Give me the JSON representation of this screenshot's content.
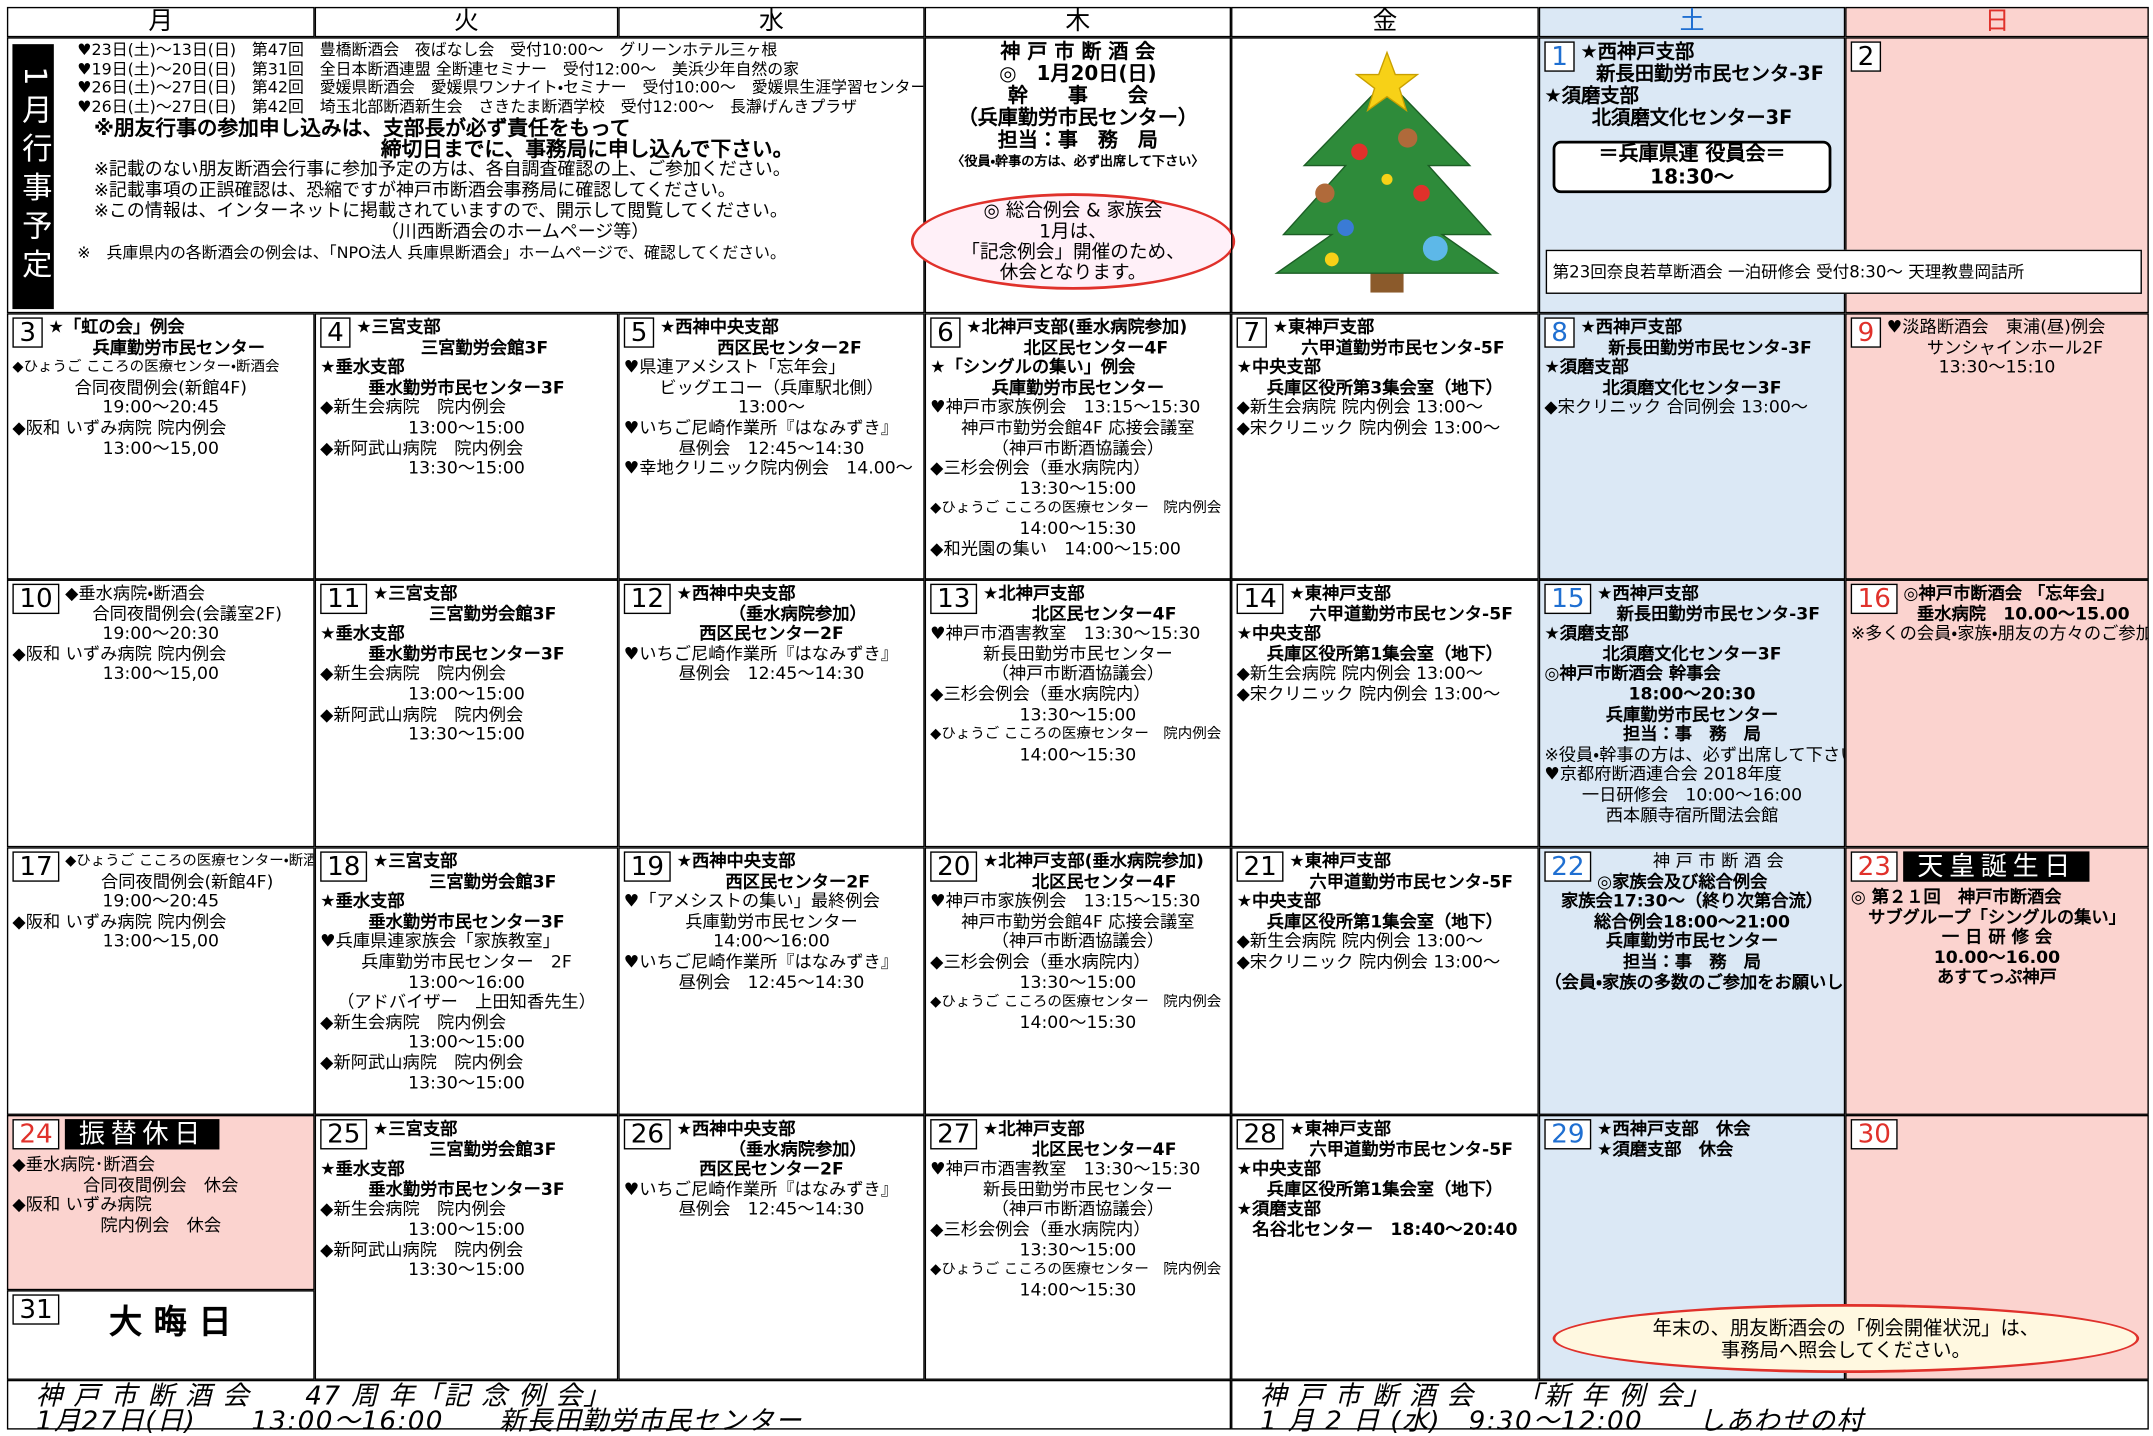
{
  "weekdays": [
    "月",
    "火",
    "水",
    "木",
    "金",
    "土",
    "日"
  ],
  "top": {
    "label": "1月行事予定",
    "events": [
      "♥23日(土)～13日(日)　第47回　豊橋断酒会　夜ばなし会　受付10:00～　グリーンホテル三ヶ根",
      "♥19日(土)～20日(日)　第31回　全日本断酒連盟 全断連セミナー　受付12:00～　美浜少年自然の家",
      "♥26日(土)～27日(日)　第42回　愛媛県断酒会　愛媛県ワンナイト・セミナー　受付10:00～　愛媛県生涯学習センター",
      "♥26日(土)～27日(日)　第42回　埼玉北部断酒新生会　さきたま断酒学校　受付12:00～　長瀞げんきプラザ"
    ],
    "notes": [
      "※朋友行事の参加申し込みは、支部長が必ず責任をもって",
      "締切日までに、事務局に申し込んで下さい。",
      "※記載のない朋友断酒会行事に参加予定の方は、各自調査確認の上、ご参加ください。",
      "※記載事項の正誤確認は、恐縮ですが神戸市断酒会事務局に確認してください。",
      "※この情報は、インターネットに掲載されていますので、開示して閲覧してください。",
      "（川西断酒会のホームページ等）",
      "※　兵庫県内の各断酒会の例会は、「NPO法人 兵庫県断酒会」ホームページで、確認してください。"
    ],
    "thursday": [
      "神 戸 市 断 酒 会",
      "◎　1月20日(日)",
      "幹　　事　　会",
      "（兵庫勤労市民センター）",
      "担当：事　務　局",
      "〈役員・幹事の方は、必ず出席して下さい〉"
    ],
    "bubble": [
      "◎ 総合例会 & 家族会",
      "1月は、",
      "「記念例会」開催のため、",
      "休会となります。"
    ],
    "saturday": {
      "day": "1",
      "lines": [
        "★西神戸支部",
        "新長田勤労市民センタ-3F",
        "★須磨支部",
        "北須磨文化センター3F"
      ],
      "box": [
        "＝兵庫県連 役員会＝",
        "18:30～"
      ]
    },
    "sunday": {
      "day": "2"
    },
    "nara": "第23回奈良若草断酒会 一泊研修会 受付8:30～ 天理教豊岡詰所"
  },
  "weeks": [
    [
      {
        "day": "3",
        "lines": [
          "★「虹の会」例会",
          "兵庫勤労市民センター",
          "◆ひょうご こころの医療センター・断酒会",
          "合同夜間例会(新館4F)",
          "19:00～20:45",
          "◆阪和 いずみ病院 院内例会",
          "13:00～15,00"
        ]
      },
      {
        "day": "4",
        "lines": [
          "★三宮支部",
          "三宮勤労会館3F",
          "★垂水支部",
          "垂水勤労市民センター3F",
          "◆新生会病院　院内例会",
          "13:00～15:00",
          "◆新阿武山病院　院内例会",
          "13:30～15:00"
        ]
      },
      {
        "day": "5",
        "lines": [
          "★西神中央支部",
          "西区民センター2F",
          "♥県連アメシスト「忘年会」",
          "ビッグエコー（兵庫駅北側）",
          "13:00～",
          "♥いちご尼崎作業所『はなみずき』",
          "昼例会　12:45～14:30",
          "♥幸地クリニック院内例会　14.00～"
        ]
      },
      {
        "day": "6",
        "lines": [
          "★北神戸支部(垂水病院参加)",
          "北区民センター4F",
          "★「シングルの集い」例会",
          "兵庫勤労市民センター",
          "♥神戸市家族例会　13:15～15:30",
          "神戸市勤労会館4F 応接会議室",
          "（神戸市断酒協議会）",
          "◆三杉会例会（垂水病院内）",
          "13:30～15:00",
          "◆ひょうご こころの医療センター　院内例会",
          "14:00～15:30",
          "◆和光園の集い　14:00～15:00"
        ]
      },
      {
        "day": "7",
        "lines": [
          "★東神戸支部",
          "六甲道勤労市民センタ-5F",
          "★中央支部",
          "兵庫区役所第3集会室（地下）",
          "◆新生会病院 院内例会 13:00～",
          "◆宋クリニック 院内例会 13:00～"
        ]
      },
      {
        "day": "8",
        "lines": [
          "★西神戸支部",
          "新長田勤労市民センタ-3F",
          "★須磨支部",
          "北須磨文化センター3F",
          "◆宋クリニック 合同例会 13:00～"
        ]
      },
      {
        "day": "9",
        "lines": [
          "♥淡路断酒会　東浦(昼)例会",
          "サンシャインホール2F",
          "13:30～15:10"
        ]
      }
    ],
    [
      {
        "day": "10",
        "lines": [
          "◆垂水病院・断酒会",
          "合同夜間例会(会議室2F)",
          "19:00～20:30",
          "◆阪和 いずみ病院 院内例会",
          "13:00～15,00"
        ]
      },
      {
        "day": "11",
        "lines": [
          "★三宮支部",
          "三宮勤労会館3F",
          "★垂水支部",
          "垂水勤労市民センター3F",
          "◆新生会病院　院内例会",
          "13:00～15:00",
          "◆新阿武山病院　院内例会",
          "13:30～15:00"
        ]
      },
      {
        "day": "12",
        "lines": [
          "★西神中央支部",
          "（垂水病院参加）",
          "西区民センター2F",
          "♥いちご尼崎作業所『はなみずき』",
          "昼例会　12:45～14:30"
        ]
      },
      {
        "day": "13",
        "lines": [
          "★北神戸支部",
          "北区民センター4F",
          "♥神戸市酒害教室　13:30～15:30",
          "新長田勤労市民センター",
          "（神戸市断酒協議会）",
          "◆三杉会例会（垂水病院内）",
          "13:30～15:00",
          "◆ひょうご こころの医療センター　院内例会",
          "14:00～15:30"
        ]
      },
      {
        "day": "14",
        "lines": [
          "★東神戸支部",
          "六甲道勤労市民センタ-5F",
          "★中央支部",
          "兵庫区役所第1集会室（地下）",
          "◆新生会病院 院内例会 13:00～",
          "◆宋クリニック 院内例会 13:00～"
        ]
      },
      {
        "day": "15",
        "lines": [
          "★西神戸支部",
          "新長田勤労市民センタ-3F",
          "★須磨支部",
          "北須磨文化センター3F",
          "◎神戸市断酒会 幹事会",
          "18:00～20:30",
          "兵庫勤労市民センター",
          "担当：事　務　局",
          "※役員・幹事の方は、必ず出席して下さい",
          "♥京都府断酒連合会 2018年度",
          "一日研修会　10:00～16:00",
          "西本願寺宿所聞法会館"
        ]
      },
      {
        "day": "16",
        "lines": [
          "◎神戸市断酒会 「忘年会」",
          "垂水病院　10.00～15.00",
          "※多くの会員・家族・朋友の方々のご参加をお待ちしています"
        ]
      }
    ],
    [
      {
        "day": "17",
        "lines": [
          "◆ひょうご こころの医療センター・断酒会",
          "合同夜間例会(新館4F)",
          "19:00～20:45",
          "◆阪和 いずみ病院 院内例会",
          "13:00～15,00"
        ]
      },
      {
        "day": "18",
        "lines": [
          "★三宮支部",
          "三宮勤労会館3F",
          "★垂水支部",
          "垂水勤労市民センター3F",
          "♥兵庫県連家族会「家族教室」",
          "兵庫勤労市民センター　2F",
          "13:00～16:00",
          "（アドバイザー　上田知香先生）",
          "◆新生会病院　院内例会",
          "13:00～15:00",
          "◆新阿武山病院　院内例会",
          "13:30～15:00"
        ]
      },
      {
        "day": "19",
        "lines": [
          "★西神中央支部",
          "西区民センター2F",
          "♥「アメシストの集い」最終例会",
          "兵庫勤労市民センター",
          "14:00～16:00",
          "♥いちご尼崎作業所『はなみずき』",
          "昼例会　12:45～14:30"
        ]
      },
      {
        "day": "20",
        "lines": [
          "★北神戸支部(垂水病院参加)",
          "北区民センター4F",
          "♥神戸市家族例会　13:15～15:30",
          "神戸市勤労会館4F 応接会議室",
          "（神戸市断酒協議会）",
          "◆三杉会例会（垂水病院内）",
          "13:30～15:00",
          "◆ひょうご こころの医療センター　院内例会",
          "14:00～15:30"
        ]
      },
      {
        "day": "21",
        "lines": [
          "★東神戸支部",
          "六甲道勤労市民センタ-5F",
          "★中央支部",
          "兵庫区役所第1集会室（地下）",
          "◆新生会病院 院内例会 13:00～",
          "◆宋クリニック 院内例会 13:00～"
        ]
      },
      {
        "day": "22",
        "lines": [
          "神 戸 市 断 酒 会",
          "◎家族会及び総合例会",
          "家族会17:30～（終り次第合流）",
          "総合例会18:00～21:00",
          "兵庫勤労市民センター",
          "担当：事　務　局",
          "（会員・家族の多数のご参加をお願いします）"
        ]
      },
      {
        "day": "23",
        "heading": "天皇誕生日",
        "lines": [
          "◎ 第２１回　神戸市断酒会",
          "サブグループ「シングルの集い」",
          "一 日 研 修 会",
          "10.00～16.00",
          "あすてっぷ神戸"
        ]
      }
    ],
    [
      {
        "day": "24",
        "heading": "振替休日",
        "lines": [
          "◆垂水病院･断酒会",
          "合同夜間例会　休会",
          "◆阪和 いずみ病院",
          "院内例会　休会"
        ],
        "extra": {
          "day": "31",
          "label": "大 晦 日"
        }
      },
      {
        "day": "25",
        "lines": [
          "★三宮支部",
          "三宮勤労会館3F",
          "★垂水支部",
          "垂水勤労市民センター3F",
          "◆新生会病院　院内例会",
          "13:00～15:00",
          "◆新阿武山病院　院内例会",
          "13:30～15:00"
        ]
      },
      {
        "day": "26",
        "lines": [
          "★西神中央支部",
          "（垂水病院参加）",
          "西区民センター2F",
          "♥いちご尼崎作業所『はなみずき』",
          "昼例会　12:45～14:30"
        ]
      },
      {
        "day": "27",
        "lines": [
          "★北神戸支部",
          "北区民センター4F",
          "♥神戸市酒害教室　13:30～15:30",
          "新長田勤労市民センター",
          "（神戸市断酒協議会）",
          "◆三杉会例会（垂水病院内）",
          "13:30～15:00",
          "◆ひょうご こころの医療センター　院内例会",
          "14:00～15:30"
        ]
      },
      {
        "day": "28",
        "lines": [
          "★東神戸支部",
          "六甲道勤労市民センタ-5F",
          "★中央支部",
          "兵庫区役所第1集会室（地下）",
          "★須磨支部",
          "名谷北センター　18:40～20:40"
        ]
      },
      {
        "day": "29",
        "lines": [
          "★西神戸支部　休会",
          "★須磨支部　休会"
        ]
      },
      {
        "day": "30",
        "lines": []
      }
    ]
  ],
  "year_end_note": [
    "年末の、朋友断酒会の「例会開催状況」は、",
    "事務局へ照会してください。"
  ],
  "footer": {
    "left": [
      "神 戸 市 断 酒 会　　47 周 年「記 念 例 会」",
      "1月27日(日)　　13:00～16:00　　新長田勤労市民センター"
    ],
    "right": [
      "神 戸 市 断 酒 会　　「新 年 例 会」",
      "1 月 2 日 (水)　9:30～12:00　　しあわせの村"
    ]
  }
}
